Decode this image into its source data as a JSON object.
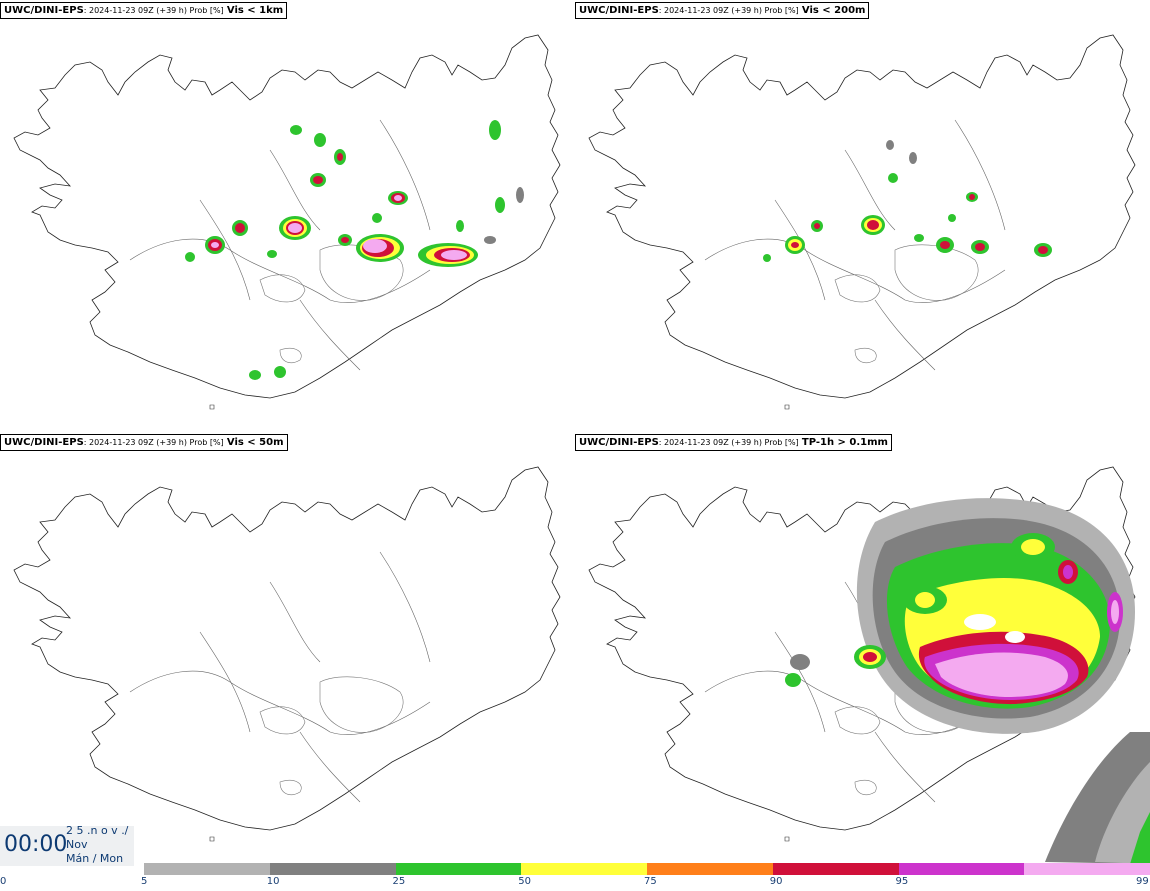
{
  "panels": [
    {
      "model": "UWC/DINI-EPS",
      "meta": ": 2024-11-23 09Z (+39 h) Prob [%]",
      "field": "Vis < 1km"
    },
    {
      "model": "UWC/DINI-EPS",
      "meta": ": 2024-11-23 09Z (+39 h) Prob [%]",
      "field": "Vis < 200m"
    },
    {
      "model": "UWC/DINI-EPS",
      "meta": ": 2024-11-23 09Z (+39 h) Prob [%]",
      "field": "Vis < 50m"
    },
    {
      "model": "UWC/DINI-EPS",
      "meta": ": 2024-11-23 09Z (+39 h) Prob [%]",
      "field": "TP-1h > 0.1mm"
    }
  ],
  "valid_time": {
    "time": "00:00",
    "line1": "2 5 .n o v ./",
    "line2": "Nov",
    "line3": "Mán / Mon"
  },
  "colorbar": {
    "ticks": [
      "0",
      "5",
      "10",
      "25",
      "50",
      "75",
      "90",
      "95",
      "99"
    ],
    "colors": [
      "#b2b2b2",
      "#808080",
      "#2ec42e",
      "#ffff3a",
      "#ff7f1a",
      "#d0103a",
      "#cc33cc",
      "#f4aaf0"
    ]
  },
  "colors": {
    "light_gray": "#b2b2b2",
    "dark_gray": "#808080",
    "green": "#2ec42e",
    "yellow": "#ffff3a",
    "orange": "#ff7f1a",
    "red": "#d0103a",
    "magenta": "#cc33cc",
    "pink": "#f4aaf0",
    "time_text": "#0d3a72"
  }
}
